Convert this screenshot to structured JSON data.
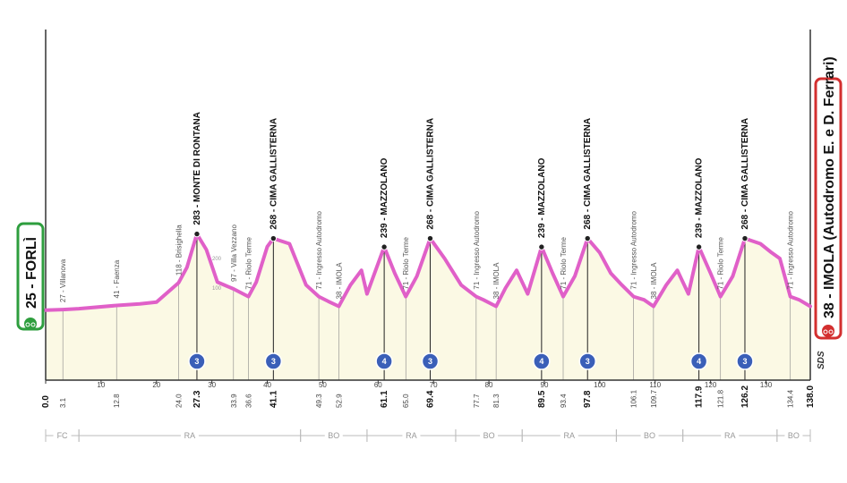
{
  "chart_data": {
    "type": "area",
    "title": "",
    "xlabel": "",
    "ylabel": "",
    "xlim": [
      0,
      138
    ],
    "ylim": [
      0,
      400
    ],
    "grid": false,
    "colors": {
      "line": "#e060c8",
      "fill": "#fbf9e4",
      "start_badge": "#2e9e3e",
      "finish_badge": "#d32f2f",
      "category_badge": "#3a5fb8",
      "axis": "#333333"
    },
    "x_ticks": [
      0,
      10,
      20,
      30,
      40,
      50,
      60,
      70,
      80,
      90,
      100,
      110,
      120,
      130
    ],
    "altitude_ticks": [
      100,
      200
    ],
    "start": {
      "km": "0.0",
      "name": "25 - FORLÌ"
    },
    "finish": {
      "km": "138.0",
      "name": "38 - IMOLA (Autodromo E. e D. Ferrari)"
    },
    "profile": [
      [
        0,
        25
      ],
      [
        3.1,
        27
      ],
      [
        6,
        30
      ],
      [
        12.8,
        41
      ],
      [
        17,
        46
      ],
      [
        20,
        52
      ],
      [
        24,
        118
      ],
      [
        25.5,
        170
      ],
      [
        27.3,
        283
      ],
      [
        29,
        230
      ],
      [
        31,
        120
      ],
      [
        33.9,
        97
      ],
      [
        36.6,
        71
      ],
      [
        38,
        120
      ],
      [
        40,
        240
      ],
      [
        41.1,
        268
      ],
      [
        44,
        250
      ],
      [
        47,
        110
      ],
      [
        49.3,
        71
      ],
      [
        51,
        55
      ],
      [
        52.9,
        38
      ],
      [
        55,
        110
      ],
      [
        57,
        160
      ],
      [
        58,
        80
      ],
      [
        61.1,
        239
      ],
      [
        63,
        150
      ],
      [
        65,
        71
      ],
      [
        67,
        140
      ],
      [
        69.4,
        268
      ],
      [
        72,
        200
      ],
      [
        75,
        110
      ],
      [
        77.7,
        71
      ],
      [
        79,
        60
      ],
      [
        81.3,
        38
      ],
      [
        83,
        100
      ],
      [
        85,
        160
      ],
      [
        87,
        80
      ],
      [
        89.5,
        239
      ],
      [
        91.5,
        150
      ],
      [
        93.4,
        71
      ],
      [
        95.5,
        140
      ],
      [
        97.8,
        268
      ],
      [
        100,
        220
      ],
      [
        102,
        150
      ],
      [
        104,
        110
      ],
      [
        106.1,
        71
      ],
      [
        108,
        60
      ],
      [
        109.7,
        38
      ],
      [
        112,
        110
      ],
      [
        114,
        160
      ],
      [
        116,
        80
      ],
      [
        117.9,
        239
      ],
      [
        120,
        150
      ],
      [
        121.8,
        71
      ],
      [
        124,
        140
      ],
      [
        126.2,
        268
      ],
      [
        129,
        250
      ],
      [
        131,
        220
      ],
      [
        132.5,
        200
      ],
      [
        134.4,
        71
      ],
      [
        136,
        60
      ],
      [
        138,
        38
      ]
    ],
    "waypoints": [
      {
        "km": "3.1",
        "label": "27 - Villanova",
        "climb": false
      },
      {
        "km": "12.8",
        "label": "41 - Faenza",
        "climb": false
      },
      {
        "km": "24.0",
        "label": "118 - Brisighella",
        "climb": false
      },
      {
        "km": "27.3",
        "label": "283 - MONTE DI RONTANA",
        "climb": true,
        "cat": "3"
      },
      {
        "km": "33.9",
        "label": "97 - Villa Vezzano",
        "climb": false
      },
      {
        "km": "36.6",
        "label": "71 - Riolo Terme",
        "climb": false
      },
      {
        "km": "41.1",
        "label": "268 - CIMA GALLISTERNA",
        "climb": true,
        "cat": "3"
      },
      {
        "km": "49.3",
        "label": "71 - Ingresso Autodromo",
        "climb": false
      },
      {
        "km": "52.9",
        "label": "38 - IMOLA",
        "climb": false
      },
      {
        "km": "61.1",
        "label": "239 - MAZZOLANO",
        "climb": true,
        "cat": "4"
      },
      {
        "km": "65.0",
        "label": "71 - Riolo Terme",
        "climb": false
      },
      {
        "km": "69.4",
        "label": "268 - CIMA GALLISTERNA",
        "climb": true,
        "cat": "3"
      },
      {
        "km": "77.7",
        "label": "71 - Ingresso Autodromo",
        "climb": false
      },
      {
        "km": "81.3",
        "label": "38 - IMOLA",
        "climb": false
      },
      {
        "km": "89.5",
        "label": "239 - MAZZOLANO",
        "climb": true,
        "cat": "4"
      },
      {
        "km": "93.4",
        "label": "71 - Riolo Terme",
        "climb": false
      },
      {
        "km": "97.8",
        "label": "268 - CIMA GALLISTERNA",
        "climb": true,
        "cat": "3"
      },
      {
        "km": "106.1",
        "label": "71 - Ingresso Autodromo",
        "climb": false
      },
      {
        "km": "109.7",
        "label": "38 - IMOLA",
        "climb": false
      },
      {
        "km": "117.9",
        "label": "239 - MAZZOLANO",
        "climb": true,
        "cat": "4"
      },
      {
        "km": "121.8",
        "label": "71 - Riolo Terme",
        "climb": false
      },
      {
        "km": "126.2",
        "label": "268 - CIMA GALLISTERNA",
        "climb": true,
        "cat": "3"
      },
      {
        "km": "134.4",
        "label": "71 - Ingresso Autodromo",
        "climb": false
      }
    ],
    "provinces": [
      {
        "name": "FC",
        "from": 0,
        "to": 6
      },
      {
        "name": "RA",
        "from": 6,
        "to": 46
      },
      {
        "name": "BO",
        "from": 46,
        "to": 58
      },
      {
        "name": "RA",
        "from": 58,
        "to": 74
      },
      {
        "name": "BO",
        "from": 74,
        "to": 86
      },
      {
        "name": "RA",
        "from": 86,
        "to": 103
      },
      {
        "name": "BO",
        "from": 103,
        "to": 115
      },
      {
        "name": "RA",
        "from": 115,
        "to": 132
      },
      {
        "name": "BO",
        "from": 132,
        "to": 138
      }
    ],
    "logo": "SDS"
  }
}
